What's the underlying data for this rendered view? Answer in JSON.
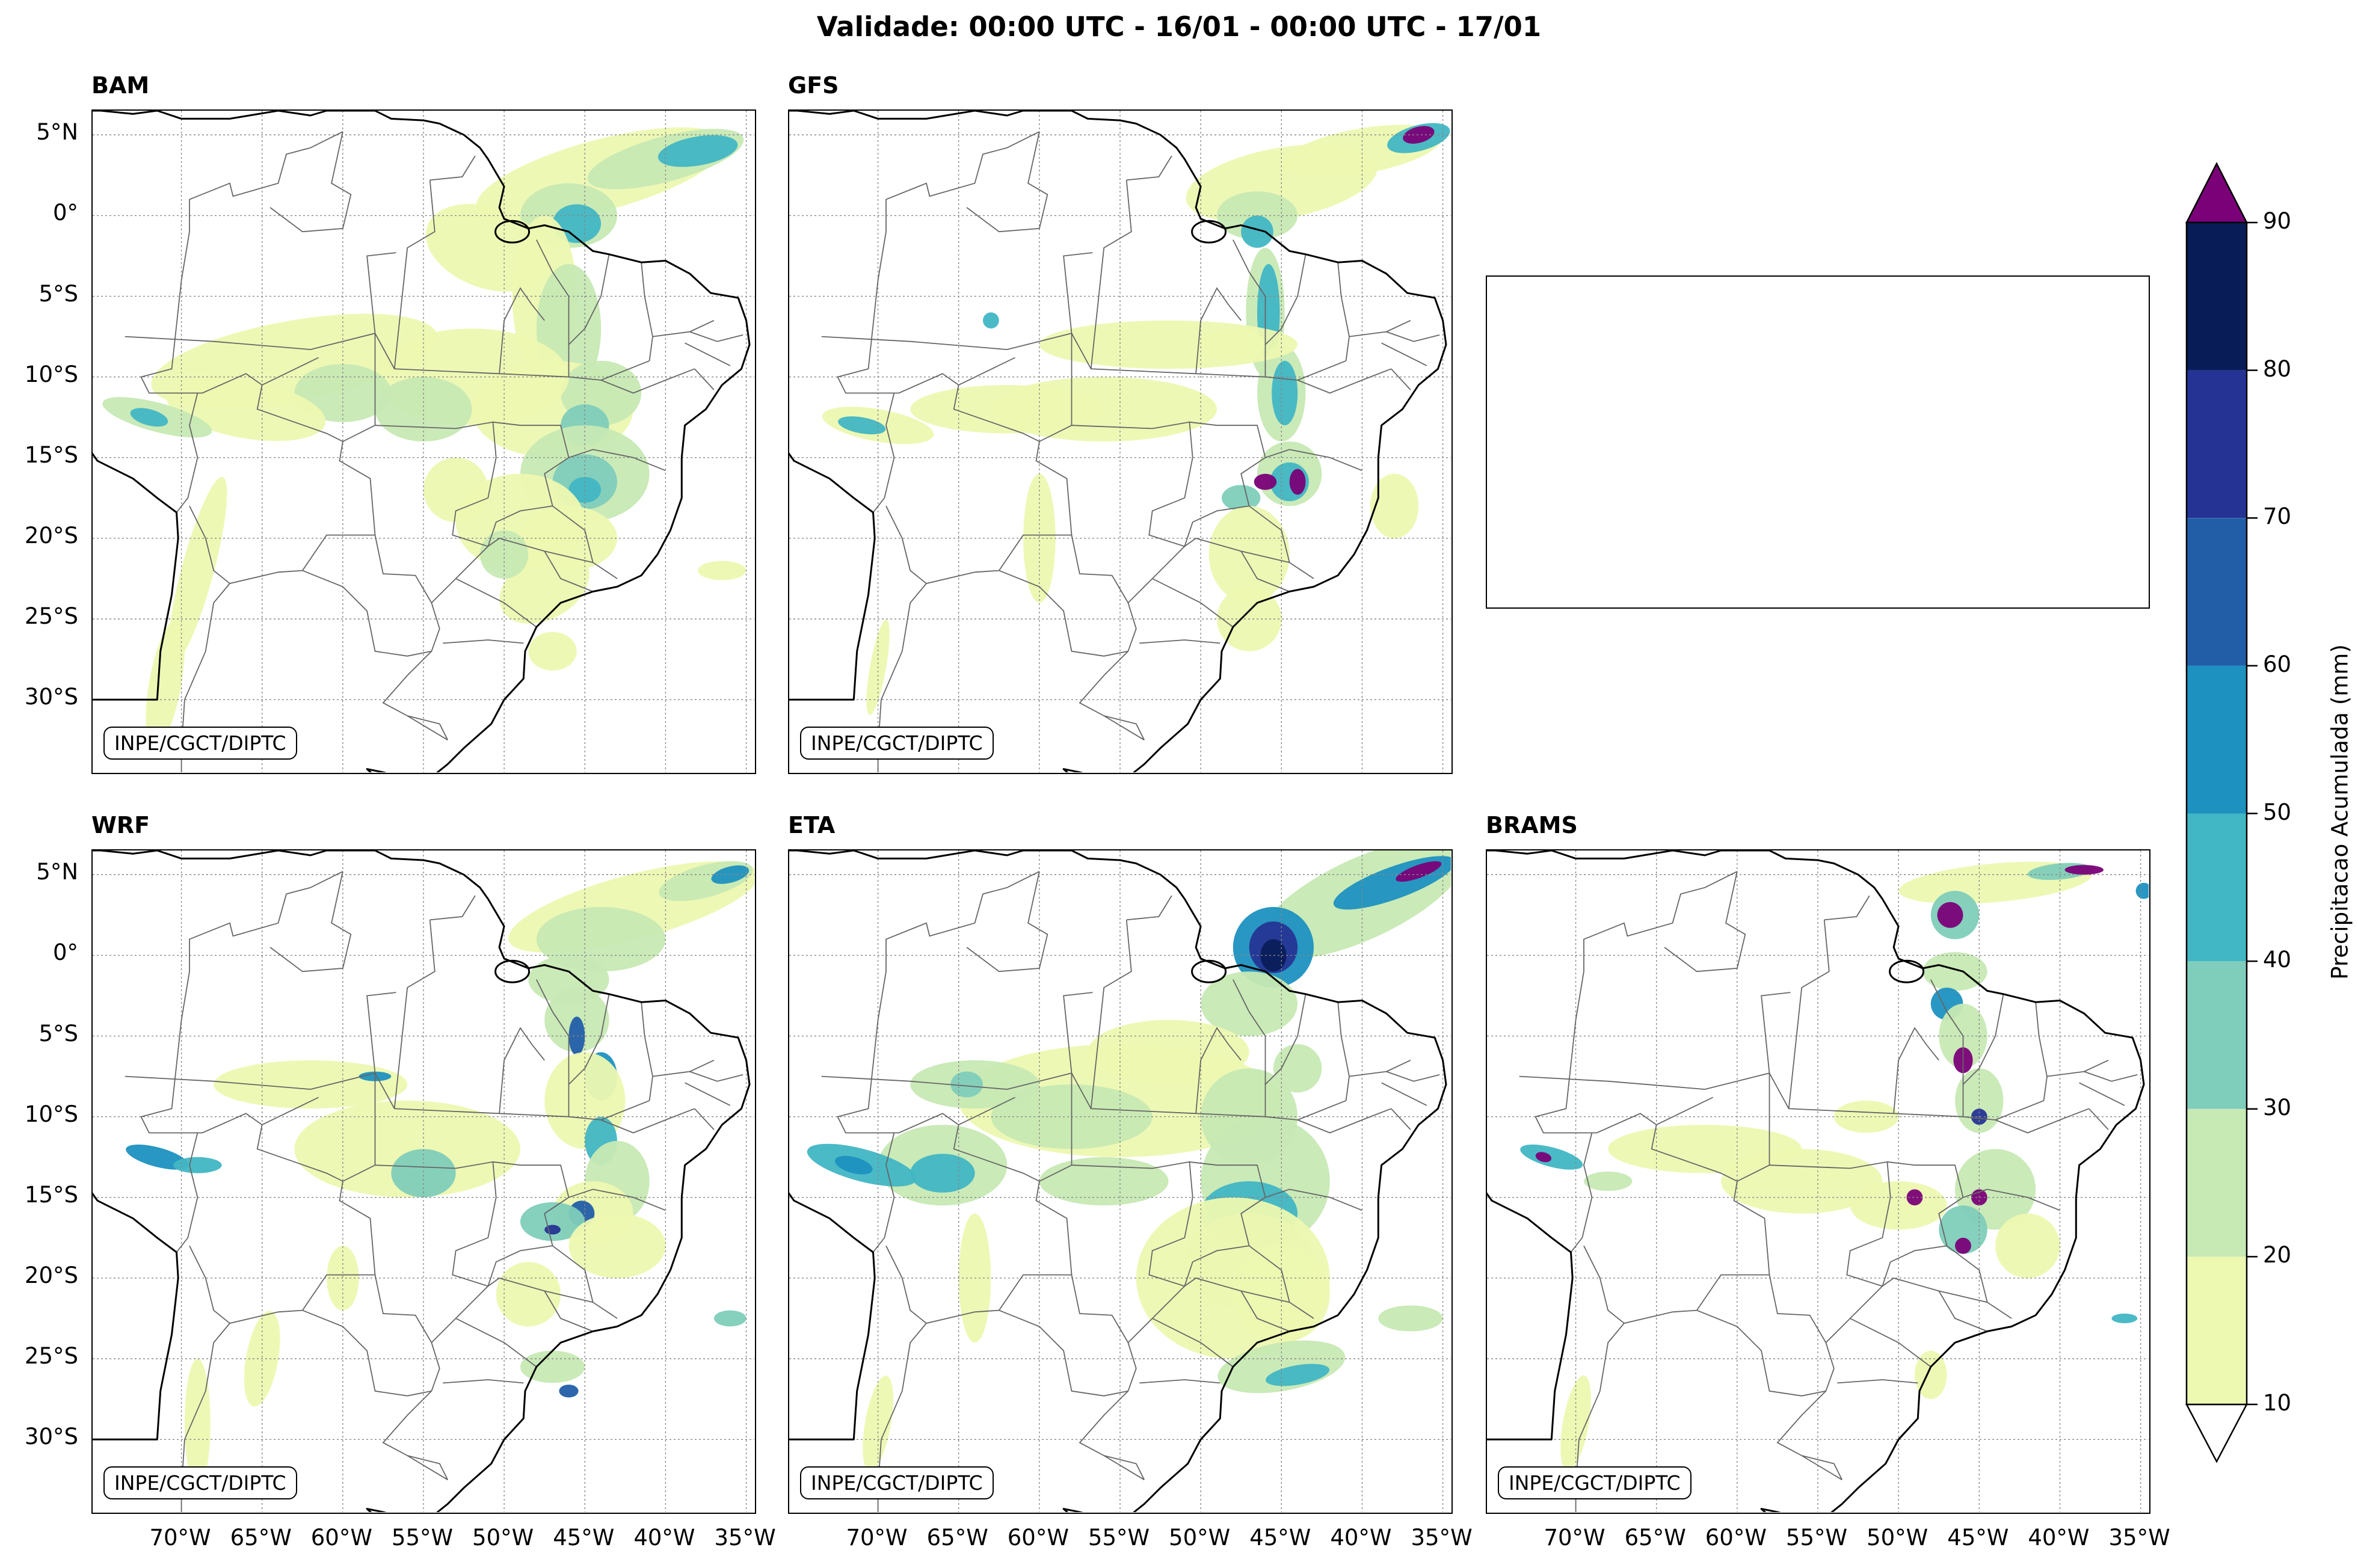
{
  "title": "Validade: 00:00 UTC - 16/01 - 00:00 UTC - 17/01",
  "credit": "INPE/CGCT/DIPTC",
  "panels": [
    {
      "name": "BAM"
    },
    {
      "name": "GFS"
    },
    {
      "name": "WRF"
    },
    {
      "name": "ETA"
    },
    {
      "name": "BRAMS"
    }
  ],
  "lat_ticks": [
    "5°N",
    "0°",
    "5°S",
    "10°S",
    "15°S",
    "20°S",
    "25°S",
    "30°S"
  ],
  "lon_ticks": [
    "70°W",
    "65°W",
    "60°W",
    "55°W",
    "50°W",
    "45°W",
    "40°W",
    "35°W"
  ],
  "colorbar": {
    "label": "Precipitacao Acumulada (mm)",
    "ticks": [
      "10",
      "20",
      "30",
      "40",
      "50",
      "60",
      "70",
      "80",
      "90"
    ],
    "levels": [
      10,
      20,
      30,
      40,
      50,
      60,
      70,
      80,
      90
    ],
    "colors": [
      "#edf8b1",
      "#c7e9b4",
      "#7fcdbb",
      "#41b6c4",
      "#1d91c0",
      "#225ea8",
      "#253494",
      "#081d58"
    ],
    "over_color": "#7a0177",
    "under_color": "#ffffff"
  }
}
